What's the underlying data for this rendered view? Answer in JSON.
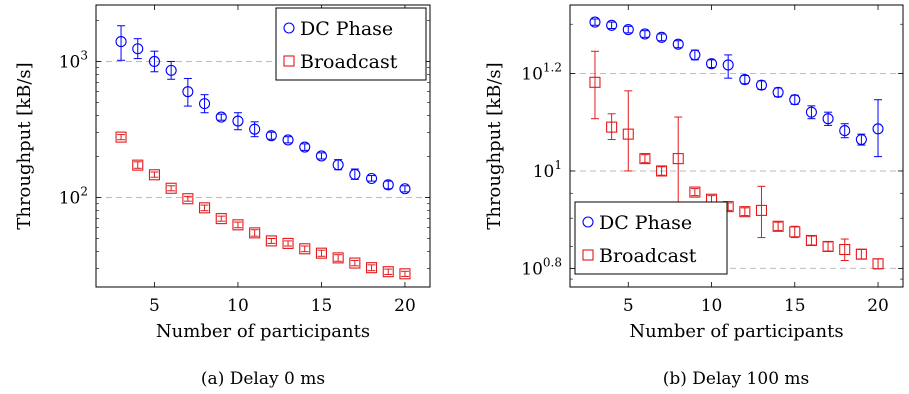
{
  "chart_data": [
    {
      "type": "scatter",
      "caption": "(a) Delay 0 ms",
      "xlabel": "Number of participants",
      "ylabel": "Throughput [kB/s]",
      "yscale": "log",
      "xlim": [
        1.5,
        21.5
      ],
      "ylim": [
        22,
        2600
      ],
      "xticks": [
        5,
        10,
        15,
        20
      ],
      "xtick_labels": [
        "5",
        "10",
        "15",
        "20"
      ],
      "yticks": [
        {
          "value": 100,
          "base": "10",
          "exp": "2"
        },
        {
          "value": 1000,
          "base": "10",
          "exp": "3"
        }
      ],
      "grid": "horizontal dashed at major y ticks",
      "legend_position": "top-right",
      "series": [
        {
          "name": "DC Phase",
          "color": "#0000ff",
          "marker": "circle",
          "points": [
            {
              "x": 3,
              "y": 1400,
              "lo": 1020,
              "hi": 1830
            },
            {
              "x": 4,
              "y": 1240,
              "lo": 1050,
              "hi": 1470
            },
            {
              "x": 5,
              "y": 1000,
              "lo": 840,
              "hi": 1190
            },
            {
              "x": 6,
              "y": 860,
              "lo": 740,
              "hi": 1000
            },
            {
              "x": 7,
              "y": 600,
              "lo": 470,
              "hi": 750
            },
            {
              "x": 8,
              "y": 490,
              "lo": 420,
              "hi": 570
            },
            {
              "x": 9,
              "y": 390,
              "lo": 370,
              "hi": 410
            },
            {
              "x": 10,
              "y": 365,
              "lo": 315,
              "hi": 420
            },
            {
              "x": 11,
              "y": 318,
              "lo": 280,
              "hi": 360
            },
            {
              "x": 12,
              "y": 285,
              "lo": 268,
              "hi": 302
            },
            {
              "x": 13,
              "y": 265,
              "lo": 252,
              "hi": 280
            },
            {
              "x": 14,
              "y": 235,
              "lo": 222,
              "hi": 248
            },
            {
              "x": 15,
              "y": 202,
              "lo": 192,
              "hi": 213
            },
            {
              "x": 16,
              "y": 174,
              "lo": 160,
              "hi": 190
            },
            {
              "x": 17,
              "y": 148,
              "lo": 136,
              "hi": 162
            },
            {
              "x": 18,
              "y": 138,
              "lo": 132,
              "hi": 145
            },
            {
              "x": 19,
              "y": 124,
              "lo": 116,
              "hi": 132
            },
            {
              "x": 20,
              "y": 116,
              "lo": 110,
              "hi": 122
            }
          ]
        },
        {
          "name": "Broadcast",
          "color": "#e31a1c",
          "marker": "square",
          "points": [
            {
              "x": 3,
              "y": 278,
              "lo": 266,
              "hi": 290
            },
            {
              "x": 4,
              "y": 173,
              "lo": 164,
              "hi": 183
            },
            {
              "x": 5,
              "y": 147,
              "lo": 141,
              "hi": 154
            },
            {
              "x": 6,
              "y": 117,
              "lo": 112,
              "hi": 122
            },
            {
              "x": 7,
              "y": 98,
              "lo": 94,
              "hi": 102
            },
            {
              "x": 8,
              "y": 84,
              "lo": 80,
              "hi": 88
            },
            {
              "x": 9,
              "y": 70,
              "lo": 67,
              "hi": 73
            },
            {
              "x": 10,
              "y": 63,
              "lo": 60,
              "hi": 66
            },
            {
              "x": 11,
              "y": 55,
              "lo": 52,
              "hi": 58
            },
            {
              "x": 12,
              "y": 48,
              "lo": 46,
              "hi": 50
            },
            {
              "x": 13,
              "y": 46,
              "lo": 44,
              "hi": 48
            },
            {
              "x": 14,
              "y": 42,
              "lo": 40,
              "hi": 44
            },
            {
              "x": 15,
              "y": 39,
              "lo": 37,
              "hi": 41
            },
            {
              "x": 16,
              "y": 36,
              "lo": 34,
              "hi": 38
            },
            {
              "x": 17,
              "y": 33,
              "lo": 31.5,
              "hi": 34.5
            },
            {
              "x": 18,
              "y": 30.5,
              "lo": 29,
              "hi": 32
            },
            {
              "x": 19,
              "y": 28.5,
              "lo": 27.2,
              "hi": 29.8
            },
            {
              "x": 20,
              "y": 27.5,
              "lo": 26.3,
              "hi": 28.7
            }
          ]
        }
      ]
    },
    {
      "type": "scatter",
      "caption": "(b) Delay 100 ms",
      "xlabel": "Number of participants",
      "ylabel": "Throughput [kB/s]",
      "yscale": "log",
      "xlim": [
        1.5,
        21.5
      ],
      "ylim": [
        5.78,
        21.9
      ],
      "xticks": [
        5,
        10,
        15,
        20
      ],
      "xtick_labels": [
        "5",
        "10",
        "15",
        "20"
      ],
      "yticks": [
        {
          "value": 6.31,
          "base": "10",
          "exp": "0.8"
        },
        {
          "value": 10,
          "base": "10",
          "exp": "1"
        },
        {
          "value": 15.85,
          "base": "10",
          "exp": "1.2"
        }
      ],
      "grid": "horizontal dashed at major y ticks",
      "legend_position": "bottom-left",
      "series": [
        {
          "name": "DC Phase",
          "color": "#0000ff",
          "marker": "circle",
          "points": [
            {
              "x": 3,
              "y": 20.2,
              "lo": 19.9,
              "hi": 20.5
            },
            {
              "x": 4,
              "y": 19.9,
              "lo": 19.6,
              "hi": 20.2
            },
            {
              "x": 5,
              "y": 19.5,
              "lo": 19.2,
              "hi": 19.8
            },
            {
              "x": 6,
              "y": 19.1,
              "lo": 18.8,
              "hi": 19.4
            },
            {
              "x": 7,
              "y": 18.8,
              "lo": 18.5,
              "hi": 19.1
            },
            {
              "x": 8,
              "y": 18.2,
              "lo": 17.9,
              "hi": 18.5
            },
            {
              "x": 9,
              "y": 17.3,
              "lo": 16.9,
              "hi": 17.7
            },
            {
              "x": 10,
              "y": 16.6,
              "lo": 16.3,
              "hi": 16.9
            },
            {
              "x": 11,
              "y": 16.5,
              "lo": 15.5,
              "hi": 17.3
            },
            {
              "x": 12,
              "y": 15.4,
              "lo": 15.1,
              "hi": 15.7
            },
            {
              "x": 13,
              "y": 15.0,
              "lo": 14.7,
              "hi": 15.3
            },
            {
              "x": 14,
              "y": 14.5,
              "lo": 14.2,
              "hi": 14.8
            },
            {
              "x": 15,
              "y": 14.0,
              "lo": 13.7,
              "hi": 14.3
            },
            {
              "x": 16,
              "y": 13.2,
              "lo": 12.8,
              "hi": 13.6
            },
            {
              "x": 17,
              "y": 12.8,
              "lo": 12.4,
              "hi": 13.2
            },
            {
              "x": 18,
              "y": 12.1,
              "lo": 11.7,
              "hi": 12.5
            },
            {
              "x": 19,
              "y": 11.6,
              "lo": 11.3,
              "hi": 11.9
            },
            {
              "x": 20,
              "y": 12.2,
              "lo": 10.7,
              "hi": 14.0
            }
          ]
        },
        {
          "name": "Broadcast",
          "color": "#e31a1c",
          "marker": "square",
          "points": [
            {
              "x": 3,
              "y": 15.2,
              "lo": 12.8,
              "hi": 17.6
            },
            {
              "x": 4,
              "y": 12.3,
              "lo": 11.6,
              "hi": 13.1
            },
            {
              "x": 5,
              "y": 11.9,
              "lo": 10.0,
              "hi": 14.6
            },
            {
              "x": 6,
              "y": 10.6,
              "lo": 10.4,
              "hi": 10.8
            },
            {
              "x": 7,
              "y": 10.0,
              "lo": 9.8,
              "hi": 10.2
            },
            {
              "x": 8,
              "y": 10.6,
              "lo": 8.55,
              "hi": 12.9
            },
            {
              "x": 9,
              "y": 9.05,
              "lo": 8.9,
              "hi": 9.2
            },
            {
              "x": 10,
              "y": 8.75,
              "lo": 8.6,
              "hi": 8.9
            },
            {
              "x": 11,
              "y": 8.45,
              "lo": 8.3,
              "hi": 8.6
            },
            {
              "x": 12,
              "y": 8.25,
              "lo": 8.1,
              "hi": 8.4
            },
            {
              "x": 13,
              "y": 8.3,
              "lo": 7.3,
              "hi": 9.3
            },
            {
              "x": 14,
              "y": 7.7,
              "lo": 7.55,
              "hi": 7.85
            },
            {
              "x": 15,
              "y": 7.5,
              "lo": 7.3,
              "hi": 7.7
            },
            {
              "x": 16,
              "y": 7.2,
              "lo": 7.05,
              "hi": 7.35
            },
            {
              "x": 17,
              "y": 7.0,
              "lo": 6.85,
              "hi": 7.15
            },
            {
              "x": 18,
              "y": 6.9,
              "lo": 6.55,
              "hi": 7.25
            },
            {
              "x": 19,
              "y": 6.75,
              "lo": 6.6,
              "hi": 6.9
            },
            {
              "x": 20,
              "y": 6.45,
              "lo": 6.3,
              "hi": 6.6
            }
          ]
        }
      ]
    }
  ]
}
